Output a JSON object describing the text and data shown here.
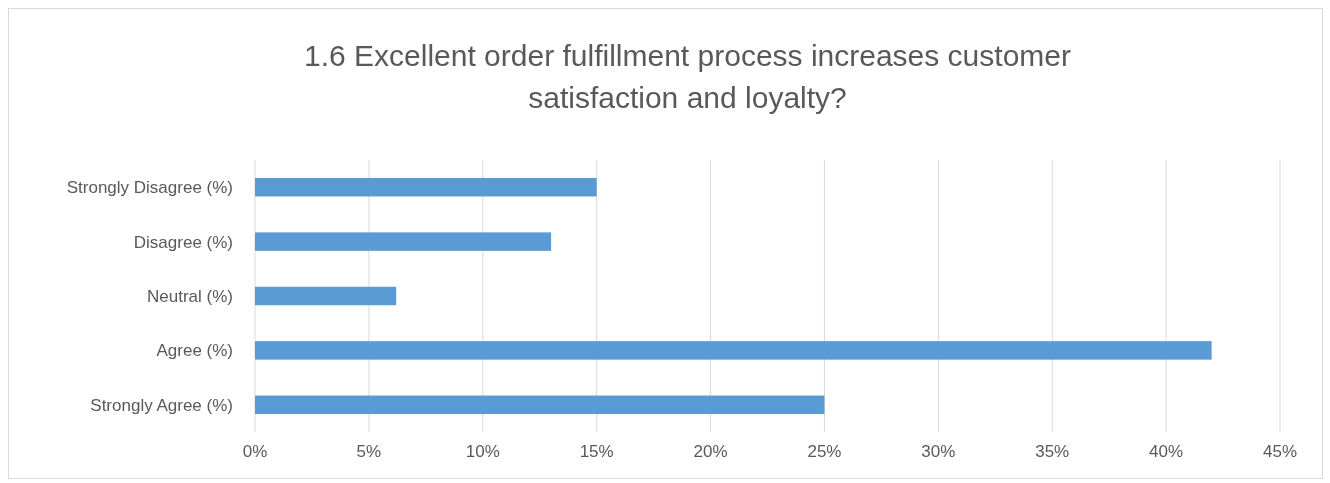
{
  "chart_data": {
    "type": "bar",
    "orientation": "horizontal",
    "title": "1.6 Excellent order fulfillment process increases customer satisfaction and loyalty?",
    "categories": [
      "Strongly Disagree (%)",
      "Disagree (%)",
      "Neutral (%)",
      "Agree (%)",
      "Strongly Agree (%)"
    ],
    "values": [
      15,
      13,
      6.2,
      42,
      25
    ],
    "color": "#5b9bd5",
    "xlim": [
      0,
      45
    ],
    "xticks": [
      {
        "value": 0,
        "label": "0%"
      },
      {
        "value": 5,
        "label": "5%"
      },
      {
        "value": 10,
        "label": "10%"
      },
      {
        "value": 15,
        "label": "15%"
      },
      {
        "value": 20,
        "label": "20%"
      },
      {
        "value": 25,
        "label": "25%"
      },
      {
        "value": 30,
        "label": "30%"
      },
      {
        "value": 35,
        "label": "35%"
      },
      {
        "value": 40,
        "label": "40%"
      },
      {
        "value": 45,
        "label": "45%"
      }
    ],
    "grid": "x"
  }
}
